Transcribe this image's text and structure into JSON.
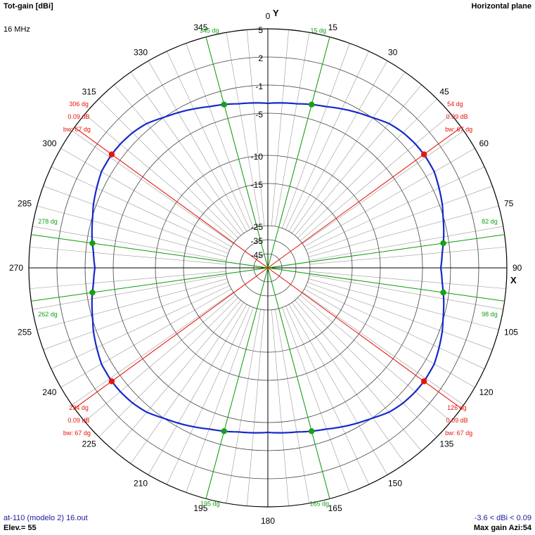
{
  "header": {
    "left_title": "Tot-gain [dBi]",
    "frequency": "16 MHz",
    "right_title": "Horizontal plane"
  },
  "footer": {
    "file": "at-110 (modelo 2) 16.out",
    "elevation": "Elev.= 55",
    "gain_range": "-3.6 < dBi < 0.09",
    "max_gain": "Max gain Azi:54"
  },
  "colors": {
    "pattern": "#1428c8",
    "max_markers": "#e8140a",
    "bw_markers": "#16a016",
    "grid": "#000000",
    "ring": "#444444"
  },
  "chart_data": {
    "type": "polar",
    "axis_labels": {
      "x": "X",
      "y": "Y"
    },
    "angle_labels": [
      "0",
      "15",
      "30",
      "45",
      "60",
      "75",
      "90",
      "105",
      "120",
      "135",
      "150",
      "165",
      "180",
      "195",
      "210",
      "225",
      "240",
      "255",
      "270",
      "285",
      "300",
      "315",
      "330",
      "345"
    ],
    "ring_labels": [
      "5",
      "2",
      "-1",
      "-5",
      "-10",
      "-15",
      "-25",
      "-35",
      "-45"
    ],
    "ring_levels_dbi": [
      5,
      2,
      -1,
      -5,
      -10,
      -15,
      -25,
      -35,
      -45
    ],
    "pattern": {
      "azimuth_deg": [
        0,
        10,
        20,
        30,
        40,
        45,
        50,
        54,
        60,
        70,
        80,
        82,
        85,
        90
      ],
      "gain_dbi": [
        -3.6,
        -3.3,
        -2.6,
        -1.5,
        -0.4,
        -0.1,
        0.05,
        0.09,
        0.0,
        -0.7,
        -1.6,
        -1.8,
        -2.1,
        -2.4
      ],
      "symmetry": "four-fold (mirror about X and Y axes)"
    },
    "max_gain_markers": [
      {
        "azimuth": 54,
        "label": "54 dg",
        "gain_label": "0.09 dB",
        "bw_label": "bw: 67 dg"
      },
      {
        "azimuth": 126,
        "label": "126 dg",
        "gain_label": "0.09 dB",
        "bw_label": "bw: 67 dg"
      },
      {
        "azimuth": 234,
        "label": "234 dg",
        "gain_label": "0.09 dB",
        "bw_label": "bw: 67 dg"
      },
      {
        "azimuth": 306,
        "label": "306 dg",
        "gain_label": "0.09 dB",
        "bw_label": "bw: 67 dg"
      }
    ],
    "beamwidth_markers": [
      {
        "azimuth": 15,
        "label": "15 dg"
      },
      {
        "azimuth": 82,
        "label": "82 dg"
      },
      {
        "azimuth": 98,
        "label": "98 dg"
      },
      {
        "azimuth": 165,
        "label": "165 dg"
      },
      {
        "azimuth": 195,
        "label": "195 dg"
      },
      {
        "azimuth": 262,
        "label": "262 dg"
      },
      {
        "azimuth": 278,
        "label": "278 dg"
      },
      {
        "azimuth": 345,
        "label": "345 dg"
      }
    ]
  }
}
